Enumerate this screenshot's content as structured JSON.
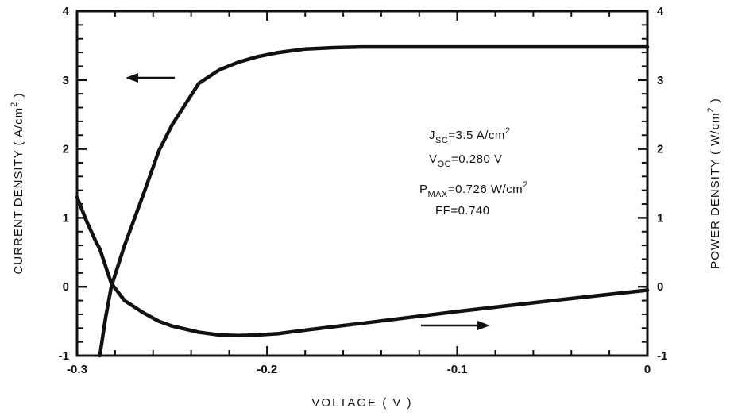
{
  "chart_data": {
    "type": "line",
    "x_label": [
      {
        "text": "VOLTAGE ( V )"
      }
    ],
    "y_label": [
      {
        "text": "CURRENT DENSITY ( A/cm"
      },
      {
        "text": "2",
        "shift": "sup"
      },
      {
        "text": " )"
      }
    ],
    "y2_label": [
      {
        "text": "POWER DENSITY ( W/cm"
      },
      {
        "text": "2",
        "shift": "sup"
      },
      {
        "text": " )"
      }
    ],
    "x": [
      -0.3,
      -0.295,
      -0.29,
      -0.288,
      -0.285,
      -0.282,
      -0.275,
      -0.265,
      -0.257,
      -0.25,
      -0.236,
      -0.225,
      -0.215,
      -0.205,
      -0.194,
      -0.18,
      -0.165,
      -0.15,
      -0.1,
      -0.05,
      0
    ],
    "series": [
      {
        "name": "current density",
        "color": "#111111",
        "axis": "y",
        "values": [
          null,
          null,
          null,
          -1.0,
          -0.45,
          0,
          0.6,
          1.35,
          1.97,
          2.35,
          2.95,
          3.15,
          3.26,
          3.34,
          3.4,
          3.45,
          3.47,
          3.48,
          3.48,
          3.48,
          3.48
        ]
      },
      {
        "name": "power density",
        "color": "#111111",
        "axis": "y2",
        "values": [
          1.3,
          0.95,
          0.65,
          0.55,
          0.3,
          0.05,
          -0.2,
          -0.38,
          -0.5,
          -0.57,
          -0.66,
          -0.7,
          -0.71,
          -0.7,
          -0.68,
          -0.63,
          -0.58,
          -0.53,
          -0.36,
          -0.2,
          -0.05
        ]
      }
    ],
    "xlim": [
      -0.3,
      0
    ],
    "xticks": [
      -0.3,
      -0.2,
      -0.1,
      0
    ],
    "ylim": [
      -1,
      4
    ],
    "yticks": [
      -1,
      0,
      1,
      2,
      3,
      4
    ],
    "y2lim": [
      -1,
      4
    ],
    "y2ticks": [
      -1,
      0,
      1,
      2,
      3,
      4
    ],
    "annotations": [
      [
        {
          "text": "J"
        },
        {
          "text": "SC",
          "shift": "sub"
        },
        {
          "text": "=3.5 A/cm"
        },
        {
          "text": "2",
          "shift": "sup"
        }
      ],
      [
        {
          "text": "V"
        },
        {
          "text": "OC",
          "shift": "sub"
        },
        {
          "text": "=0.280 V"
        }
      ],
      [
        {
          "text": "P"
        },
        {
          "text": "MAX",
          "shift": "sub"
        },
        {
          "text": "=0.726 W/cm"
        },
        {
          "text": "2",
          "shift": "sup"
        }
      ],
      [
        {
          "text": "FF=0.740"
        }
      ]
    ]
  }
}
